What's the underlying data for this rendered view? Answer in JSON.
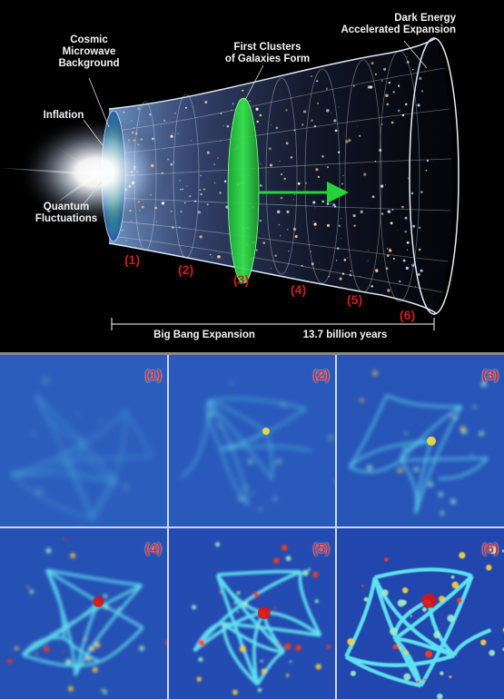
{
  "timeline": {
    "labels": {
      "cmb": "Cosmic\nMicrowave\nBackground",
      "inflation": "Inflation",
      "quantum": "Quantum\nFluctuations",
      "clusters": "First Clusters\nof Galaxies Form",
      "dark_energy": "Dark Energy\nAccelerated Expansion",
      "big_bang": "Big Bang Expansion",
      "age": "13.7 billion years"
    },
    "eras": [
      "(1)",
      "(2)",
      "(3)",
      "(4)",
      "(5)",
      "(6)"
    ]
  },
  "panels": [
    {
      "label": "(1)",
      "stage": 1
    },
    {
      "label": "(2)",
      "stage": 2
    },
    {
      "label": "(3)",
      "stage": 3
    },
    {
      "label": "(4)",
      "stage": 4
    },
    {
      "label": "(5)",
      "stage": 5
    },
    {
      "label": "(6)",
      "stage": 6
    }
  ],
  "colors": {
    "era_label": "#d11d1d",
    "cluster_disk": "#28d23c",
    "cmb_disk": "#3aa6a0",
    "panel_base": "#1d3fa8"
  }
}
